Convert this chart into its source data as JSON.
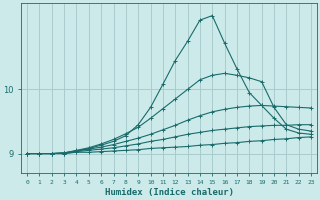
{
  "xlabel": "Humidex (Indice chaleur)",
  "bg_color": "#cceaea",
  "grid_color": "#aacccc",
  "line_color": "#1a6b6b",
  "marker": "+",
  "x_ticks": [
    0,
    1,
    2,
    3,
    4,
    5,
    6,
    7,
    8,
    9,
    10,
    11,
    12,
    13,
    14,
    15,
    16,
    17,
    18,
    19,
    20,
    21,
    22,
    23
  ],
  "y_ticks": [
    9,
    10
  ],
  "ylim": [
    8.7,
    11.35
  ],
  "xlim": [
    -0.5,
    23.5
  ],
  "series": [
    [
      9.0,
      9.0,
      9.0,
      9.0,
      9.02,
      9.02,
      9.03,
      9.04,
      9.05,
      9.06,
      9.08,
      9.09,
      9.1,
      9.11,
      9.13,
      9.14,
      9.16,
      9.17,
      9.19,
      9.2,
      9.22,
      9.23,
      9.25,
      9.26
    ],
    [
      9.0,
      9.0,
      9.0,
      9.0,
      9.03,
      9.05,
      9.07,
      9.09,
      9.12,
      9.15,
      9.19,
      9.22,
      9.26,
      9.3,
      9.33,
      9.36,
      9.38,
      9.4,
      9.42,
      9.43,
      9.44,
      9.44,
      9.45,
      9.45
    ],
    [
      9.0,
      9.0,
      9.0,
      9.01,
      9.04,
      9.07,
      9.1,
      9.14,
      9.19,
      9.24,
      9.3,
      9.37,
      9.44,
      9.52,
      9.59,
      9.65,
      9.69,
      9.72,
      9.74,
      9.75,
      9.74,
      9.73,
      9.72,
      9.71
    ],
    [
      9.0,
      9.0,
      9.0,
      9.01,
      9.05,
      9.09,
      9.15,
      9.22,
      9.31,
      9.41,
      9.55,
      9.7,
      9.85,
      10.0,
      10.15,
      10.22,
      10.25,
      10.22,
      10.18,
      10.12,
      9.72,
      9.45,
      9.38,
      9.35
    ],
    [
      9.0,
      9.0,
      9.0,
      9.01,
      9.04,
      9.08,
      9.13,
      9.19,
      9.28,
      9.45,
      9.72,
      10.08,
      10.45,
      10.75,
      11.08,
      11.15,
      10.72,
      10.32,
      9.95,
      9.75,
      9.55,
      9.38,
      9.32,
      9.3
    ]
  ]
}
